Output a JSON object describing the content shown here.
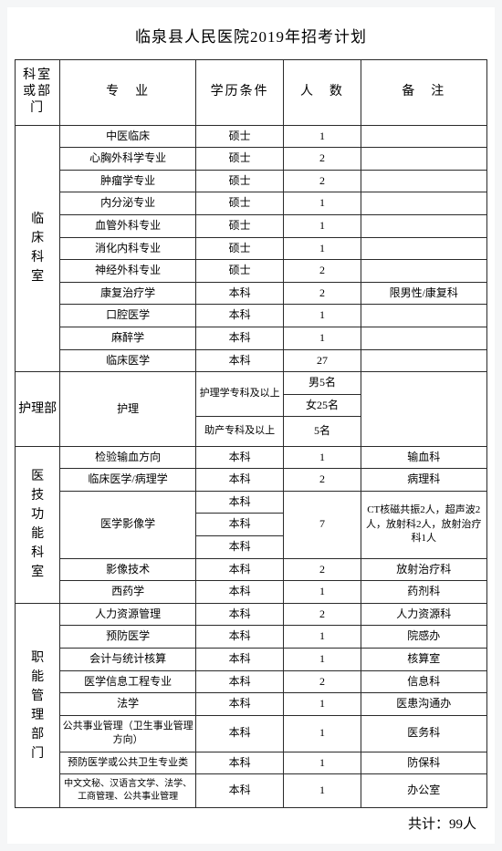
{
  "title": "临泉县人民医院2019年招考计划",
  "headers": {
    "dept": "科室或部门",
    "major": "专　业",
    "edu": "学历条件",
    "num": "人　数",
    "note": "备　注"
  },
  "depts": {
    "d1": "临床科室",
    "d2": "护理部",
    "d3": "医技功能科室",
    "d4": "职能管理部门"
  },
  "rows": {
    "r1": {
      "major": "中医临床",
      "edu": "硕士",
      "num": "1",
      "note": ""
    },
    "r2": {
      "major": "心胸外科学专业",
      "edu": "硕士",
      "num": "2",
      "note": ""
    },
    "r3": {
      "major": "肿瘤学专业",
      "edu": "硕士",
      "num": "2",
      "note": ""
    },
    "r4": {
      "major": "内分泌专业",
      "edu": "硕士",
      "num": "1",
      "note": ""
    },
    "r5": {
      "major": "血管外科专业",
      "edu": "硕士",
      "num": "1",
      "note": ""
    },
    "r6": {
      "major": "消化内科专业",
      "edu": "硕士",
      "num": "1",
      "note": ""
    },
    "r7": {
      "major": "神经外科专业",
      "edu": "硕士",
      "num": "2",
      "note": ""
    },
    "r8": {
      "major": "康复治疗学",
      "edu": "本科",
      "num": "2",
      "note": "限男性/康复科"
    },
    "r9": {
      "major": "口腔医学",
      "edu": "本科",
      "num": "1",
      "note": ""
    },
    "r10": {
      "major": "麻醉学",
      "edu": "本科",
      "num": "1",
      "note": ""
    },
    "r11": {
      "major": "临床医学",
      "edu": "本科",
      "num": "27",
      "note": ""
    },
    "r12": {
      "major": "护理",
      "edu1": "护理学专科及以上",
      "num1": "男5名",
      "num2": "女25名",
      "edu2": "助产专科及以上",
      "num3": "5名"
    },
    "r13": {
      "major": "检验输血方向",
      "edu": "本科",
      "num": "1",
      "note": "输血科"
    },
    "r14": {
      "major": "临床医学/病理学",
      "edu": "本科",
      "num": "2",
      "note": "病理科"
    },
    "r15": {
      "major": "医学影像学",
      "edu1": "本科",
      "edu2": "本科",
      "edu3": "本科",
      "num": "7",
      "note": "CT核磁共振2人，超声波2人，放射科2人，放射治疗科1人"
    },
    "r16": {
      "major": "影像技术",
      "edu": "本科",
      "num": "2",
      "note": "放射治疗科"
    },
    "r17": {
      "major": "西药学",
      "edu": "本科",
      "num": "1",
      "note": "药剂科"
    },
    "r18": {
      "major": "人力资源管理",
      "edu": "本科",
      "num": "2",
      "note": "人力资源科"
    },
    "r19": {
      "major": "预防医学",
      "edu": "本科",
      "num": "1",
      "note": "院感办"
    },
    "r20": {
      "major": "会计与统计核算",
      "edu": "本科",
      "num": "1",
      "note": "核算室"
    },
    "r21": {
      "major": "医学信息工程专业",
      "edu": "本科",
      "num": "2",
      "note": "信息科"
    },
    "r22": {
      "major": "法学",
      "edu": "本科",
      "num": "1",
      "note": "医患沟通办"
    },
    "r23": {
      "major": "公共事业管理（卫生事业管理方向）",
      "edu": "本科",
      "num": "1",
      "note": "医务科"
    },
    "r24": {
      "major": "预防医学或公共卫生专业类",
      "edu": "本科",
      "num": "1",
      "note": "防保科"
    },
    "r25": {
      "major": "中文文秘、汉语言文学、法学、工商管理、公共事业管理",
      "edu": "本科",
      "num": "1",
      "note": "办公室"
    }
  },
  "footer": "共计：99人"
}
